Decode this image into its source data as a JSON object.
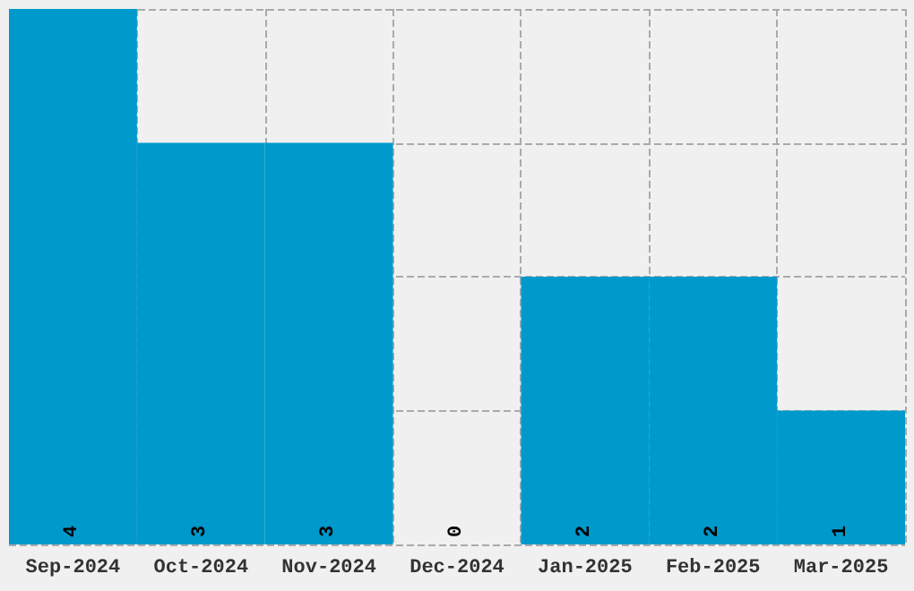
{
  "chart_data": {
    "type": "bar",
    "categories": [
      "Sep-2024",
      "Oct-2024",
      "Nov-2024",
      "Dec-2024",
      "Jan-2025",
      "Feb-2025",
      "Mar-2025"
    ],
    "values": [
      4,
      3,
      3,
      0,
      2,
      2,
      1
    ],
    "color": "#0099cc",
    "data_labels": true,
    "grid": true,
    "tick_labels": "x"
  }
}
